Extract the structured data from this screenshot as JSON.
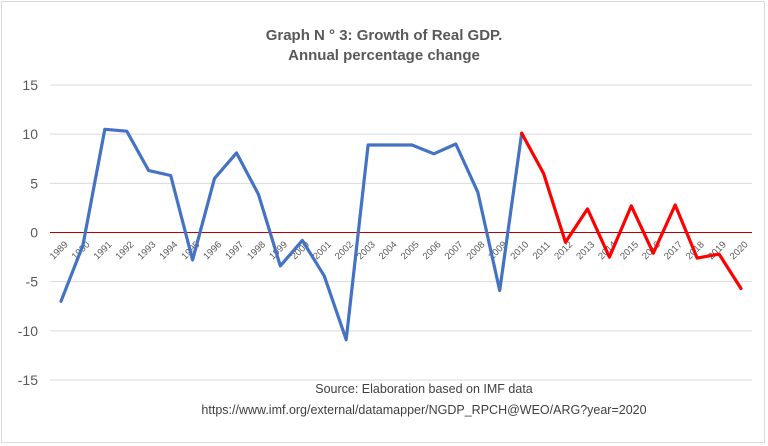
{
  "chart_data": {
    "type": "line",
    "title": "Graph N ° 3: Growth of Real GDP.",
    "subtitle": "Annual  percentage change",
    "source_line1": "Source:  Elaboration based on IMF data",
    "source_line2": "https://www.imf.org/external/datamapper/NGDP_RPCH@WEO/ARG?year=2020",
    "ylim": [
      -15,
      15
    ],
    "yticks": [
      15,
      10,
      5,
      0,
      -5,
      -10,
      -15
    ],
    "grid": true,
    "zero_line_color": "#c00000",
    "x": [
      1989,
      1990,
      1991,
      1992,
      1993,
      1994,
      1995,
      1996,
      1997,
      1998,
      1999,
      2000,
      2001,
      2002,
      2003,
      2004,
      2005,
      2006,
      2007,
      2008,
      2009,
      2010,
      2011,
      2012,
      2013,
      2014,
      2015,
      2016,
      2017,
      2018,
      2019,
      2020
    ],
    "x_labels": [
      "1989",
      "1990",
      "1991",
      "1992",
      "1993",
      "1994",
      "1995",
      "1996",
      "1997",
      "1998",
      "1999",
      "2000",
      "2001",
      "2002",
      "2003",
      "2004",
      "2005",
      "2006",
      "2007",
      "2008",
      "2009",
      "2010",
      "2011",
      "2012",
      "2013",
      "2014",
      "2015",
      "2016",
      "2017",
      "2018",
      "2019",
      "2020"
    ],
    "series": [
      {
        "color": "#4472c4",
        "x": [
          1989,
          1990,
          1991,
          1992,
          1993,
          1994,
          1995,
          1996,
          1997,
          1998,
          1999,
          2000,
          2001,
          2002,
          2003,
          2004,
          2005,
          2006,
          2007,
          2008,
          2009,
          2010
        ],
        "values": [
          -7.0,
          -1.3,
          10.5,
          10.3,
          6.3,
          5.8,
          -2.8,
          5.5,
          8.1,
          3.9,
          -3.4,
          -0.8,
          -4.4,
          -10.9,
          8.9,
          8.9,
          8.9,
          8.0,
          9.0,
          4.1,
          -5.9,
          10.1
        ]
      },
      {
        "color": "#ff0000",
        "x": [
          2010,
          2011,
          2012,
          2013,
          2014,
          2015,
          2016,
          2017,
          2018,
          2019,
          2020
        ],
        "values": [
          10.1,
          6.0,
          -1.0,
          2.4,
          -2.5,
          2.7,
          -2.1,
          2.8,
          -2.6,
          -2.2,
          -5.7
        ]
      }
    ]
  }
}
